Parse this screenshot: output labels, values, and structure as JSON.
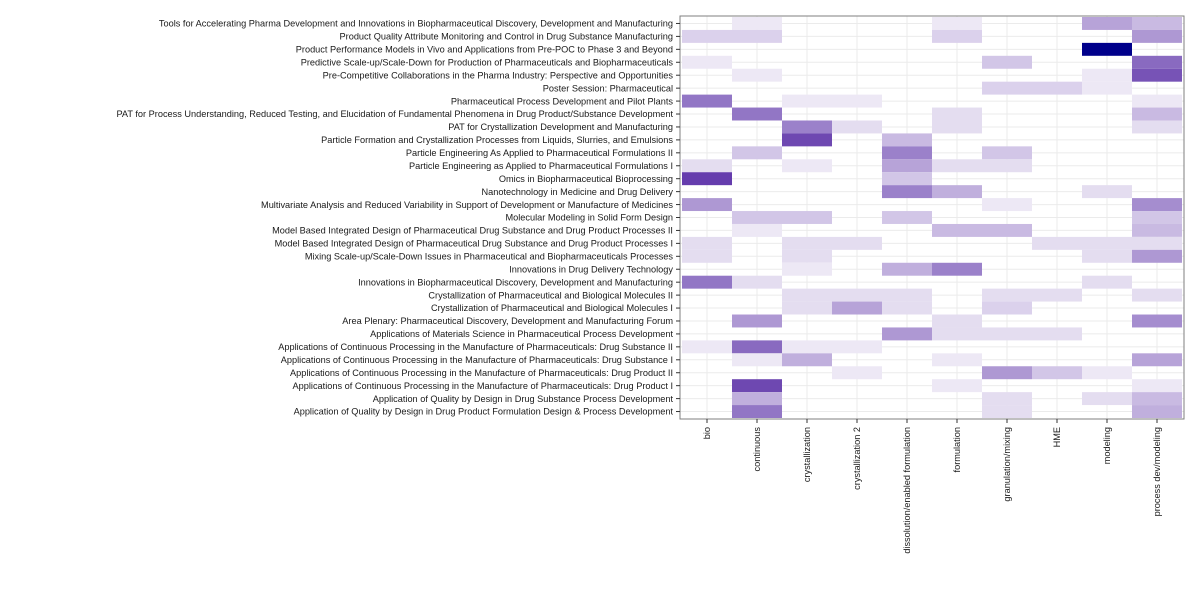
{
  "chart_data": {
    "type": "heatmap",
    "title": "",
    "xlabel": "",
    "ylabel": "",
    "grid": true,
    "legend": "none",
    "colors": {
      "low": "#ffffff",
      "high": "#4a1a9e",
      "max_cell": "#00008b",
      "panel_border": "#7f7f7f",
      "grid": "#ebebeb"
    },
    "columns": [
      "bio",
      "continuous",
      "crystallization",
      "crystallization 2",
      "dissolution/enabled formulation",
      "formulation",
      "granulation/mixing",
      "HME",
      "modeling",
      "process dev/modeling"
    ],
    "rows": [
      "Tools for Accelerating Pharma Development and Innovations in Biopharmaceutical Discovery, Development and Manufacturing",
      "Product Quality Attribute Monitoring and Control in Drug Substance Manufacturing",
      "Product Performance Models in Vivo  and Applications from Pre-POC to Phase 3 and Beyond",
      "Predictive Scale-up/Scale-Down for Production of Pharmaceuticals and Biopharmaceuticals",
      "Pre-Competitive Collaborations in the Pharma Industry: Perspective and Opportunities",
      "Poster Session: Pharmaceutical",
      "Pharmaceutical Process Development and Pilot Plants",
      "PAT for Process Understanding, Reduced Testing, and Elucidation of Fundamental Phenomena in Drug Product/Substance Development",
      "PAT for Crystallization Development and Manufacturing",
      "Particle Formation and Crystallization Processes from Liquids, Slurries, and Emulsions",
      "Particle Engineering As Applied to Pharmaceutical Formulations II",
      "Particle Engineering as Applied to Pharmaceutical Formulations I",
      "Omics in Biopharmaceutical Bioprocessing ",
      "Nanotechnology in Medicine and Drug Delivery",
      "Multivariate Analysis and Reduced Variability in Support of Development or Manufacture of Medicines",
      "Molecular Modeling in Solid Form Design",
      "Model Based Integrated Design of Pharmaceutical Drug Substance and Drug Product Processes II",
      "Model Based Integrated Design of Pharmaceutical Drug Substance and Drug Product Processes I",
      "Mixing Scale-up/Scale-Down Issues in Pharmaceutical and Biopharmaceuticals Processes",
      "Innovations in Drug Delivery Technology",
      "Innovations in Biopharmaceutical Discovery, Development and Manufacturing",
      "Crystallization of Pharmaceutical and Biological Molecules II",
      "Crystallization of Pharmaceutical and Biological Molecules I",
      "Area Plenary: Pharmaceutical Discovery, Development and Manufacturing Forum",
      "Applications of Materials Science in Pharmaceutical Process Development",
      "Applications of Continuous Processing in the Manufacture of Pharmaceuticals: Drug Substance II",
      "Applications of Continuous Processing in the Manufacture of Pharmaceuticals: Drug Substance I",
      "Applications of Continuous Processing in the Manufacture of Pharmaceuticals: Drug Product II",
      "Applications of Continuous Processing in the Manufacture of Pharmaceuticals: Drug Product I",
      "Application of Quality by Design in Drug Substance Process Development ",
      "Application of Quality by Design in Drug Product Formulation Design & Process Development "
    ],
    "values": [
      [
        0,
        0.1,
        0,
        0,
        0,
        0.1,
        0,
        0,
        0.4,
        0.3
      ],
      [
        0.2,
        0.2,
        0,
        0,
        0,
        0.2,
        0,
        0,
        0,
        0.45
      ],
      [
        0,
        0,
        0,
        0,
        0,
        0,
        0,
        0,
        1.0,
        0
      ],
      [
        0.1,
        0,
        0,
        0,
        0,
        0,
        0.25,
        0,
        0,
        0.65
      ],
      [
        0,
        0.1,
        0,
        0,
        0,
        0,
        0,
        0,
        0.1,
        0.75
      ],
      [
        0,
        0,
        0,
        0,
        0,
        0,
        0.2,
        0.2,
        0.1,
        0
      ],
      [
        0.6,
        0,
        0.1,
        0.1,
        0,
        0,
        0,
        0,
        0,
        0.1
      ],
      [
        0,
        0.6,
        0,
        0,
        0,
        0.15,
        0,
        0,
        0,
        0.3
      ],
      [
        0,
        0,
        0.55,
        0.15,
        0,
        0.15,
        0,
        0,
        0,
        0.15
      ],
      [
        0,
        0,
        0.8,
        0,
        0.3,
        0,
        0,
        0,
        0,
        0
      ],
      [
        0,
        0.25,
        0,
        0,
        0.55,
        0,
        0.25,
        0,
        0,
        0
      ],
      [
        0.15,
        0,
        0.1,
        0,
        0.4,
        0.15,
        0.15,
        0,
        0,
        0
      ],
      [
        0.85,
        0,
        0,
        0,
        0.25,
        0,
        0,
        0,
        0,
        0
      ],
      [
        0,
        0,
        0,
        0,
        0.55,
        0.35,
        0,
        0,
        0.15,
        0
      ],
      [
        0.45,
        0,
        0,
        0,
        0,
        0,
        0.1,
        0,
        0,
        0.5
      ],
      [
        0,
        0.25,
        0.25,
        0,
        0.25,
        0,
        0,
        0,
        0,
        0.25
      ],
      [
        0,
        0.1,
        0,
        0,
        0,
        0.3,
        0.3,
        0,
        0,
        0.3
      ],
      [
        0.15,
        0,
        0.15,
        0.15,
        0,
        0,
        0,
        0.15,
        0.15,
        0.15
      ],
      [
        0.15,
        0,
        0.15,
        0,
        0,
        0,
        0,
        0,
        0.15,
        0.45
      ],
      [
        0,
        0,
        0.1,
        0,
        0.35,
        0.55,
        0,
        0,
        0,
        0
      ],
      [
        0.6,
        0.15,
        0,
        0,
        0,
        0,
        0,
        0,
        0.15,
        0
      ],
      [
        0,
        0,
        0.15,
        0.15,
        0.15,
        0,
        0.15,
        0.15,
        0,
        0.15
      ],
      [
        0,
        0,
        0.15,
        0.4,
        0.15,
        0,
        0.2,
        0,
        0,
        0
      ],
      [
        0,
        0.45,
        0,
        0,
        0,
        0.15,
        0,
        0,
        0,
        0.5
      ],
      [
        0,
        0,
        0,
        0,
        0.45,
        0.15,
        0.15,
        0.15,
        0,
        0
      ],
      [
        0.1,
        0.65,
        0.1,
        0.1,
        0,
        0,
        0,
        0,
        0,
        0
      ],
      [
        0,
        0.1,
        0.35,
        0,
        0,
        0.1,
        0,
        0,
        0,
        0.4
      ],
      [
        0,
        0,
        0,
        0.1,
        0,
        0,
        0.45,
        0.25,
        0.1,
        0
      ],
      [
        0,
        0.8,
        0,
        0,
        0,
        0.1,
        0,
        0,
        0,
        0.1
      ],
      [
        0,
        0.35,
        0,
        0,
        0,
        0,
        0.15,
        0,
        0.15,
        0.3
      ],
      [
        0,
        0.6,
        0,
        0,
        0,
        0,
        0.15,
        0,
        0,
        0.35
      ]
    ]
  }
}
